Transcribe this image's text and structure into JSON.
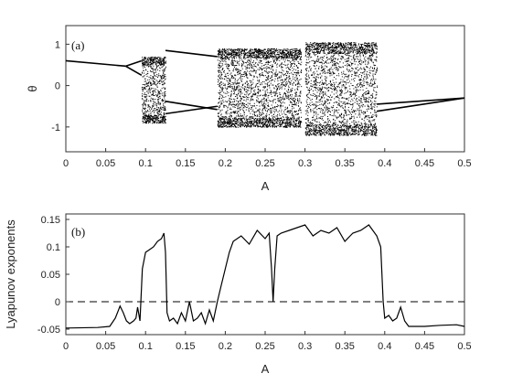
{
  "chart_data": [
    {
      "type": "scatter",
      "panel_tag": "(a)",
      "xlabel": "A",
      "ylabel": "θ",
      "xlim": [
        0,
        0.5
      ],
      "ylim": [
        -1.6,
        1.45
      ],
      "x_ticks": [
        "0",
        "0.05",
        "0.1",
        "0.15",
        "0.2",
        "0.25",
        "0.3",
        "0.35",
        "0.4",
        "0.45",
        "0.5"
      ],
      "y_ticks": [
        "-1",
        "0",
        "1"
      ],
      "grid": false,
      "series": [
        {
          "periodic_branches": [
            {
              "x": [
                0,
                0.075
              ],
              "y": [
                0.6,
                0.47
              ]
            },
            {
              "x": [
                0.075,
                0.095
              ],
              "y": [
                0.47,
                0.6
              ]
            },
            {
              "x": [
                0.075,
                0.095
              ],
              "y": [
                0.47,
                0.25
              ]
            },
            {
              "x": [
                0.125,
                0.19
              ],
              "y": [
                0.85,
                0.7
              ]
            },
            {
              "x": [
                0.125,
                0.19
              ],
              "y": [
                -0.38,
                -0.58
              ]
            },
            {
              "x": [
                0.125,
                0.19
              ],
              "y": [
                -0.68,
                -0.5
              ]
            },
            {
              "x": [
                0.39,
                0.5
              ],
              "y": [
                -0.45,
                -0.3
              ]
            },
            {
              "x": [
                0.39,
                0.5
              ],
              "y": [
                -0.62,
                -0.3
              ]
            }
          ],
          "chaotic_bands": [
            {
              "x": [
                0.095,
                0.125
              ],
              "y": [
                -0.9,
                0.7
              ]
            },
            {
              "x": [
                0.19,
                0.295
              ],
              "y": [
                -1.0,
                0.9
              ]
            },
            {
              "x": [
                0.3,
                0.39
              ],
              "y": [
                -1.2,
                1.05
              ]
            }
          ]
        }
      ]
    },
    {
      "type": "line",
      "panel_tag": "(b)",
      "xlabel": "A",
      "ylabel": "Lyapunov exponents",
      "xlim": [
        0,
        0.5
      ],
      "ylim": [
        -0.06,
        0.16
      ],
      "x_ticks": [
        "0",
        "0.05",
        "0.1",
        "0.15",
        "0.2",
        "0.25",
        "0.3",
        "0.35",
        "0.4",
        "0.45",
        "0.5"
      ],
      "y_ticks": [
        "-0.05",
        "0",
        "0.05",
        "0.1",
        "0.15"
      ],
      "grid": false,
      "series": [
        {
          "x": [
            0,
            0.04,
            0.055,
            0.062,
            0.068,
            0.072,
            0.076,
            0.08,
            0.085,
            0.088,
            0.09,
            0.093,
            0.096,
            0.1,
            0.105,
            0.11,
            0.115,
            0.12,
            0.123,
            0.125,
            0.127,
            0.13,
            0.135,
            0.14,
            0.145,
            0.15,
            0.155,
            0.16,
            0.165,
            0.17,
            0.175,
            0.18,
            0.185,
            0.19,
            0.195,
            0.2,
            0.205,
            0.21,
            0.22,
            0.23,
            0.24,
            0.25,
            0.255,
            0.258,
            0.26,
            0.262,
            0.265,
            0.27,
            0.28,
            0.29,
            0.3,
            0.31,
            0.32,
            0.33,
            0.34,
            0.35,
            0.36,
            0.37,
            0.38,
            0.39,
            0.395,
            0.398,
            0.4,
            0.405,
            0.41,
            0.415,
            0.42,
            0.425,
            0.43,
            0.45,
            0.47,
            0.49,
            0.5
          ],
          "y": [
            -0.048,
            -0.047,
            -0.045,
            -0.03,
            -0.008,
            -0.02,
            -0.035,
            -0.04,
            -0.035,
            -0.03,
            -0.01,
            -0.035,
            0.06,
            0.09,
            0.095,
            0.1,
            0.11,
            0.115,
            0.125,
            0.09,
            -0.02,
            -0.035,
            -0.03,
            -0.04,
            -0.02,
            -0.035,
            0.0,
            -0.035,
            -0.03,
            -0.02,
            -0.04,
            -0.015,
            -0.035,
            0.0,
            0.03,
            0.06,
            0.09,
            0.11,
            0.12,
            0.105,
            0.13,
            0.115,
            0.125,
            0.06,
            0.0,
            0.06,
            0.12,
            0.125,
            0.13,
            0.135,
            0.14,
            0.12,
            0.13,
            0.125,
            0.135,
            0.11,
            0.125,
            0.13,
            0.14,
            0.12,
            0.1,
            0.0,
            -0.03,
            -0.025,
            -0.035,
            -0.03,
            -0.01,
            -0.035,
            -0.045,
            -0.045,
            -0.043,
            -0.042,
            -0.045
          ]
        },
        {
          "x": [
            0,
            0.5
          ],
          "y": [
            0,
            0
          ],
          "style": "dashed"
        }
      ]
    }
  ]
}
